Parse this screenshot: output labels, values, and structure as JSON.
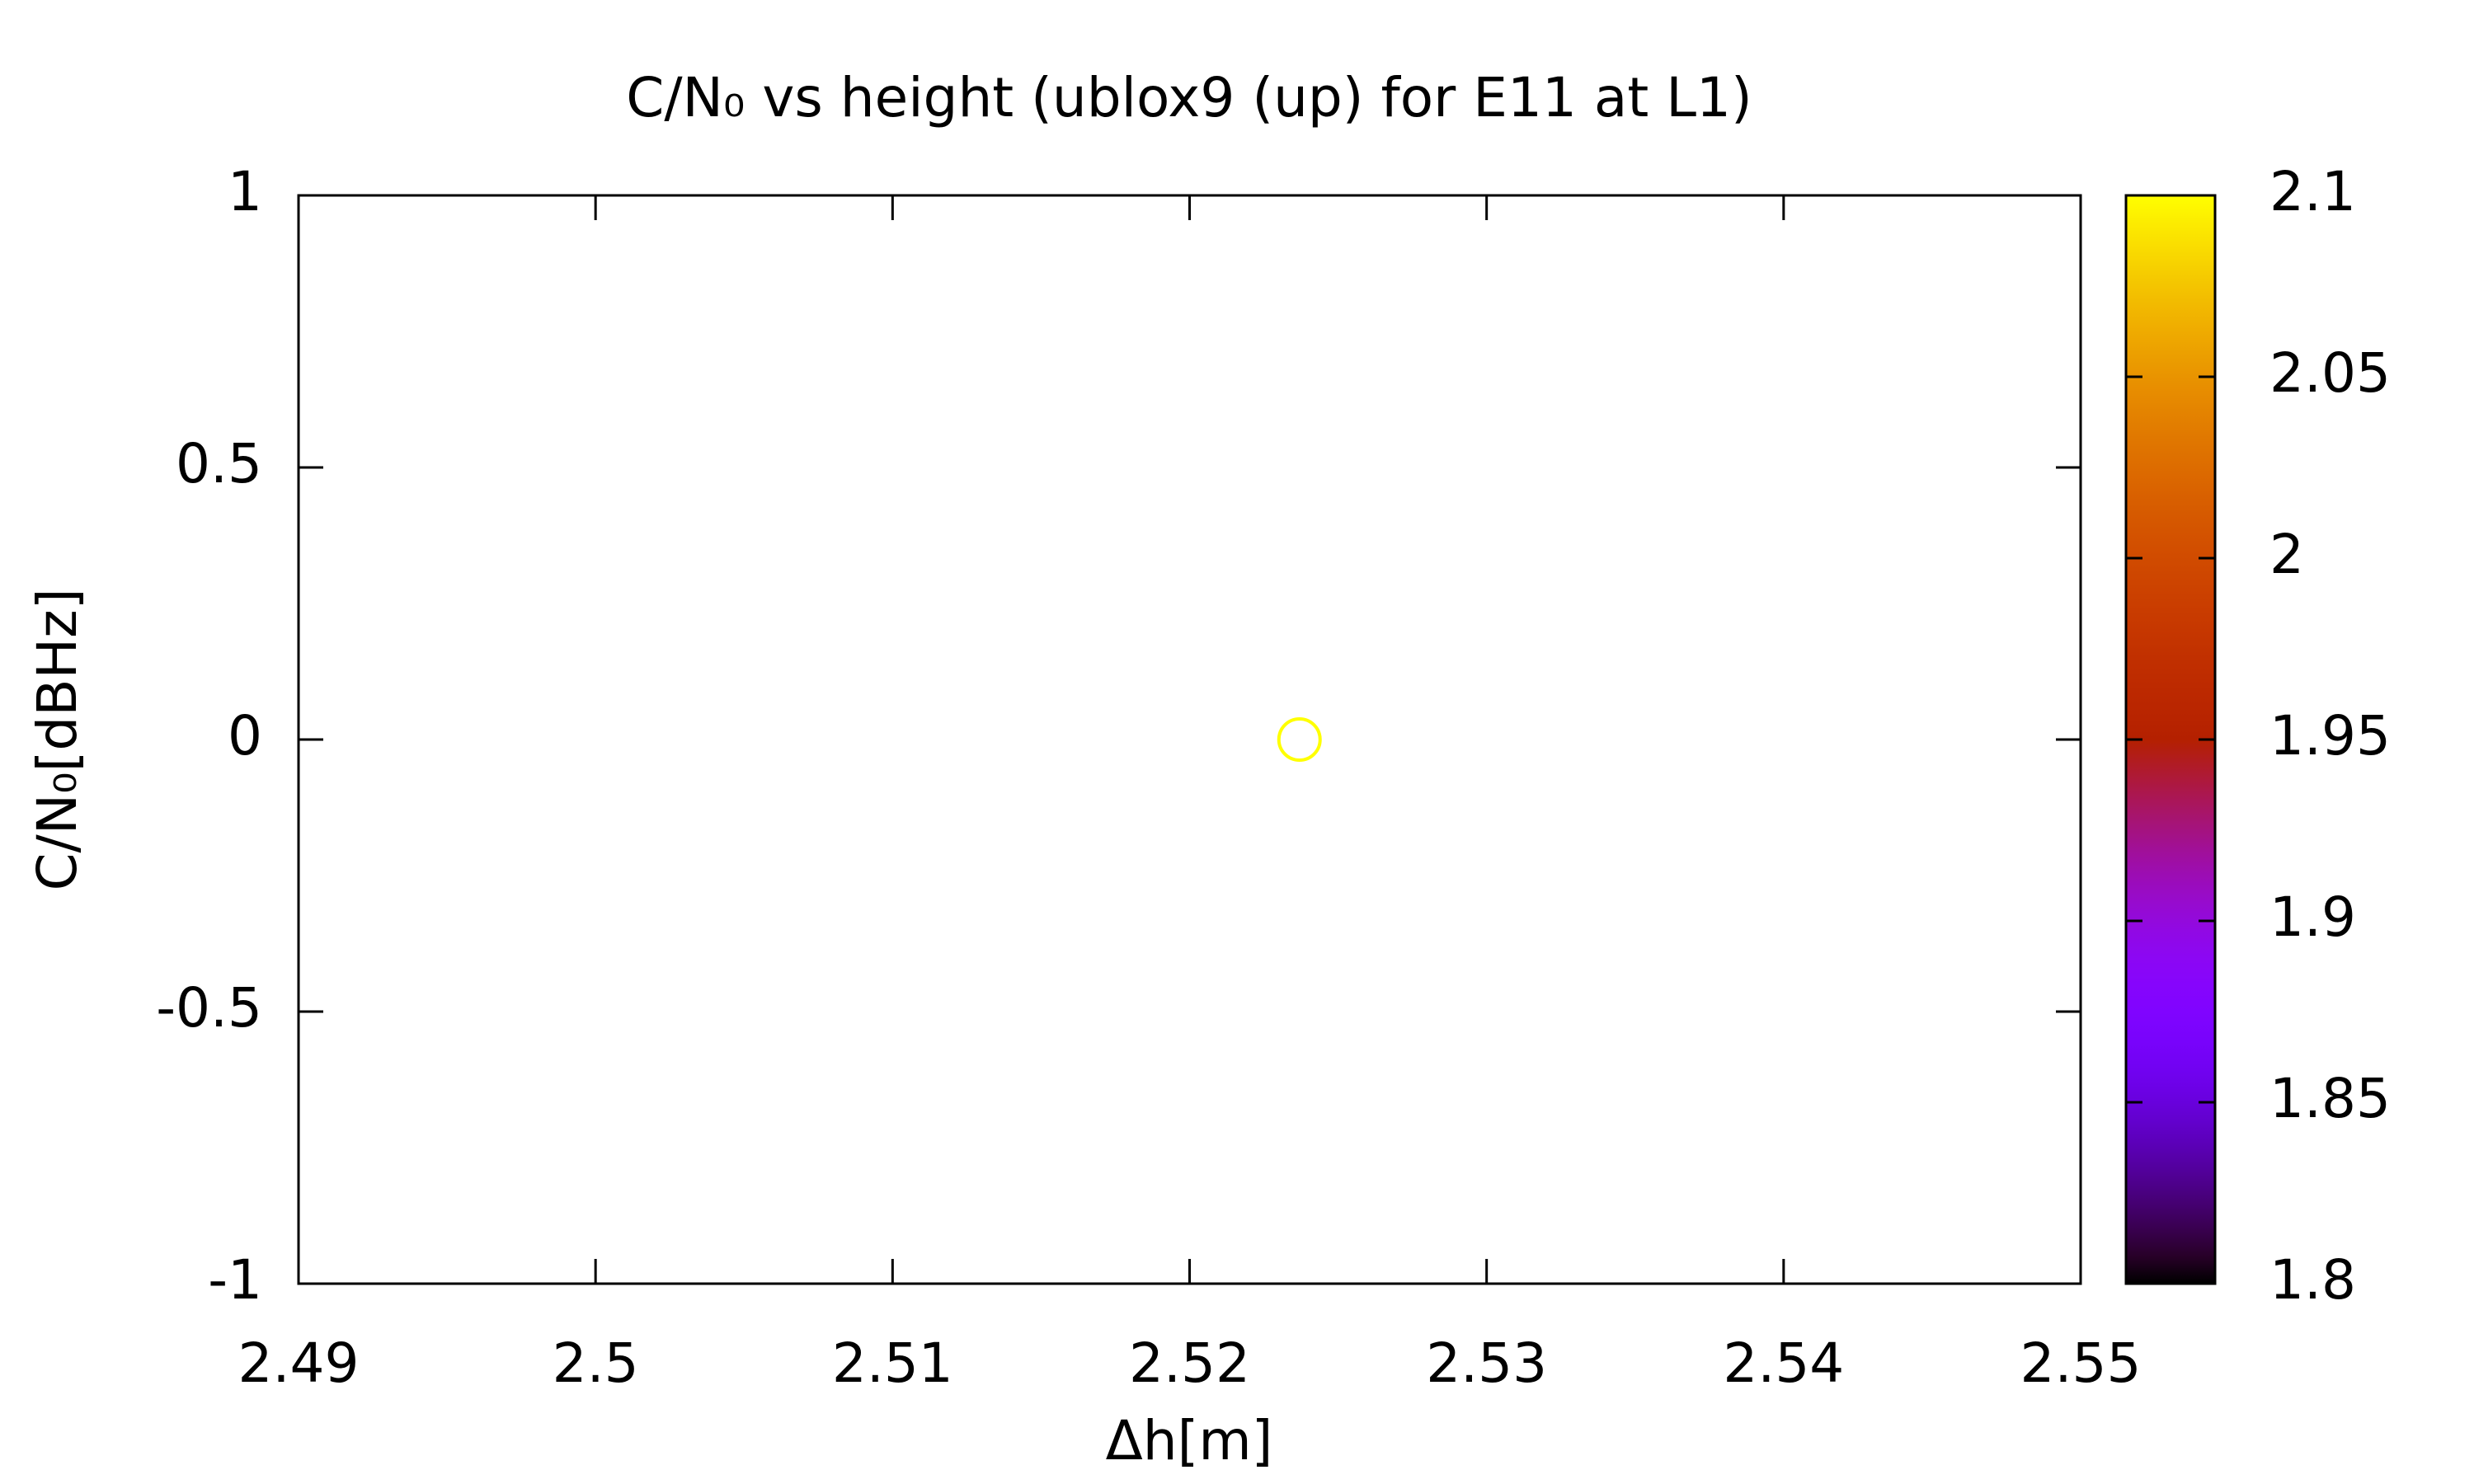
{
  "chart_data": {
    "type": "scatter",
    "title": "C/N₀ vs height (ublox9 (up) for E11 at L1)",
    "xlabel": "Δh[m]",
    "ylabel": "C/N₀[dBHz]",
    "x": [
      2.5237
    ],
    "values": [
      0
    ],
    "color_values": [
      2.1
    ],
    "marker": "open-circle",
    "colormap": "gnuplot",
    "xlim": [
      2.49,
      2.55
    ],
    "xticks": [
      2.49,
      2.5,
      2.51,
      2.52,
      2.53,
      2.54,
      2.55
    ],
    "ylim": [
      -1,
      1
    ],
    "yticks": [
      -1,
      -0.5,
      0,
      0.5,
      1
    ],
    "clim": [
      1.8,
      2.1
    ],
    "cticks": [
      1.8,
      1.85,
      1.9,
      1.95,
      2,
      2.05,
      2.1
    ],
    "grid": false
  }
}
